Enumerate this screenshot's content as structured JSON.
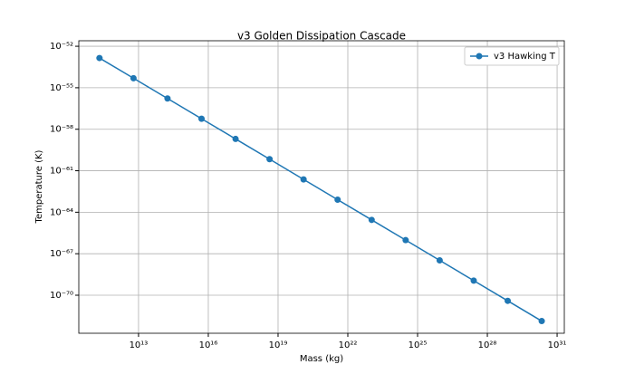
{
  "chart_data": {
    "type": "line",
    "title": "v3 Golden Dissipation Cascade",
    "x_label": "Mass (kg)",
    "y_label": "Temperature (K)",
    "x": [
      209000000000.0,
      6070000000000.0,
      176000000000000.0,
      5120000000000000.0,
      1.49e+17,
      4.32e+18,
      1.25e+20,
      3.64e+21,
      1.06e+23,
      3.07e+24,
      8.91e+25,
      2.59e+27,
      7.52e+28,
      2.18e+30
    ],
    "series": [
      {
        "name": "v3 Hawking T",
        "color": "#1f77b4",
        "values": [
          1.41e-53,
          4.86e-55,
          1.67e-56,
          5.77e-58,
          1.99e-59,
          6.84e-61,
          2.36e-62,
          8.11e-64,
          2.79e-65,
          9.62e-67,
          3.31e-68,
          1.14e-69,
          3.93e-71,
          1.35e-72
        ]
      }
    ],
    "x_log": true,
    "y_log": true,
    "xlim": [
      27000000000.0,
      2.04e+31
    ],
    "ylim": [
      1.78e-73,
      2.5e-52
    ],
    "xticks": [
      {
        "value": 10000000000000.0,
        "label": "10¹³"
      },
      {
        "value": 1e+16,
        "label": "10¹⁶"
      },
      {
        "value": 1e+19,
        "label": "10¹⁹"
      },
      {
        "value": 1e+22,
        "label": "10²²"
      },
      {
        "value": 1e+25,
        "label": "10²⁵"
      },
      {
        "value": 1e+28,
        "label": "10²⁸"
      },
      {
        "value": 1e+31,
        "label": "10³¹"
      }
    ],
    "yticks": [
      {
        "value": 1e-70,
        "label": "10⁻⁷⁰"
      },
      {
        "value": 1e-67,
        "label": "10⁻⁶⁷"
      },
      {
        "value": 1e-64,
        "label": "10⁻⁶⁴"
      },
      {
        "value": 1e-61,
        "label": "10⁻⁶¹"
      },
      {
        "value": 1e-58,
        "label": "10⁻⁵⁸"
      },
      {
        "value": 1e-55,
        "label": "10⁻⁵⁵"
      },
      {
        "value": 1e-52,
        "label": "10⁻⁵²"
      }
    ],
    "grid": true,
    "legend": "upper right"
  }
}
